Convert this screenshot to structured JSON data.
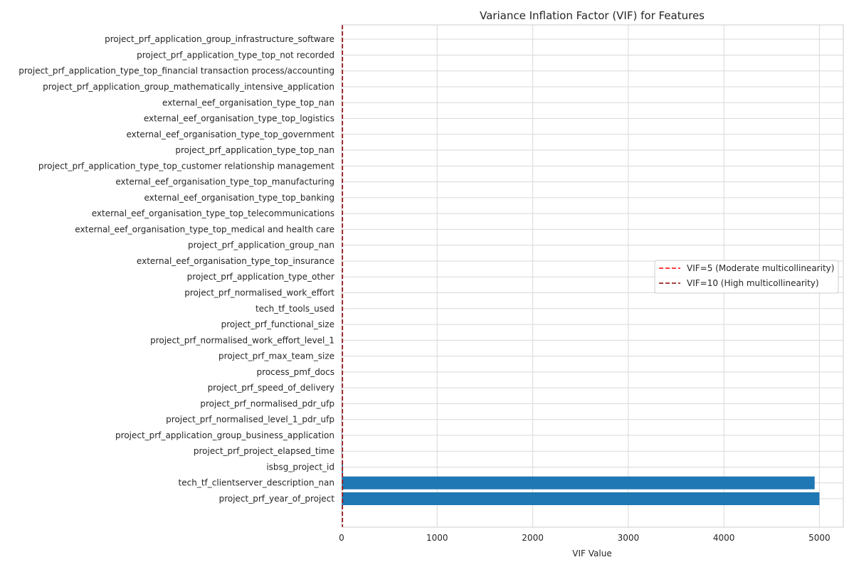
{
  "chart_data": {
    "type": "bar",
    "orientation": "horizontal",
    "title": "Variance Inflation Factor (VIF) for Features",
    "xlabel": "VIF Value",
    "ylabel": "",
    "xlim": [
      0,
      5250
    ],
    "xticks": [
      0,
      1000,
      2000,
      3000,
      4000,
      5000
    ],
    "grid": true,
    "bar_color": "#1f77b4",
    "categories": [
      "project_prf_year_of_project",
      "tech_tf_clientserver_description_nan",
      "isbsg_project_id",
      "project_prf_project_elapsed_time",
      "project_prf_application_group_business_application",
      "project_prf_normalised_level_1_pdr_ufp",
      "project_prf_normalised_pdr_ufp",
      "project_prf_speed_of_delivery",
      "process_pmf_docs",
      "project_prf_max_team_size",
      "project_prf_normalised_work_effort_level_1",
      "project_prf_functional_size",
      "tech_tf_tools_used",
      "project_prf_normalised_work_effort",
      "project_prf_application_type_other",
      "external_eef_organisation_type_top_insurance",
      "project_prf_application_group_nan",
      "external_eef_organisation_type_top_medical and health care",
      "external_eef_organisation_type_top_telecommunications",
      "external_eef_organisation_type_top_banking",
      "external_eef_organisation_type_top_manufacturing",
      "project_prf_application_type_top_customer relationship management",
      "project_prf_application_type_top_nan",
      "external_eef_organisation_type_top_government",
      "external_eef_organisation_type_top_logistics",
      "external_eef_organisation_type_top_nan",
      "project_prf_application_group_mathematically_intensive_application",
      "project_prf_application_type_top_financial transaction process/accounting",
      "project_prf_application_type_top_not recorded",
      "project_prf_application_group_infrastructure_software"
    ],
    "values": [
      5000,
      4950,
      15,
      8,
      7,
      6,
      5.5,
      5,
      4.5,
      4,
      3.8,
      3.6,
      3.4,
      3.2,
      3.0,
      2.8,
      2.6,
      2.4,
      2.3,
      2.2,
      2.1,
      2.0,
      1.9,
      1.8,
      1.7,
      1.6,
      1.5,
      1.4,
      1.3,
      1.2
    ],
    "reference_lines": [
      {
        "value": 5,
        "label": "VIF=5 (Moderate multicollinearity)",
        "color": "#ff0000",
        "style": "dashed"
      },
      {
        "value": 10,
        "label": "VIF=10 (High multicollinearity)",
        "color": "#8b0000",
        "style": "dashed"
      }
    ],
    "legend": {
      "placement": "center-right"
    }
  }
}
